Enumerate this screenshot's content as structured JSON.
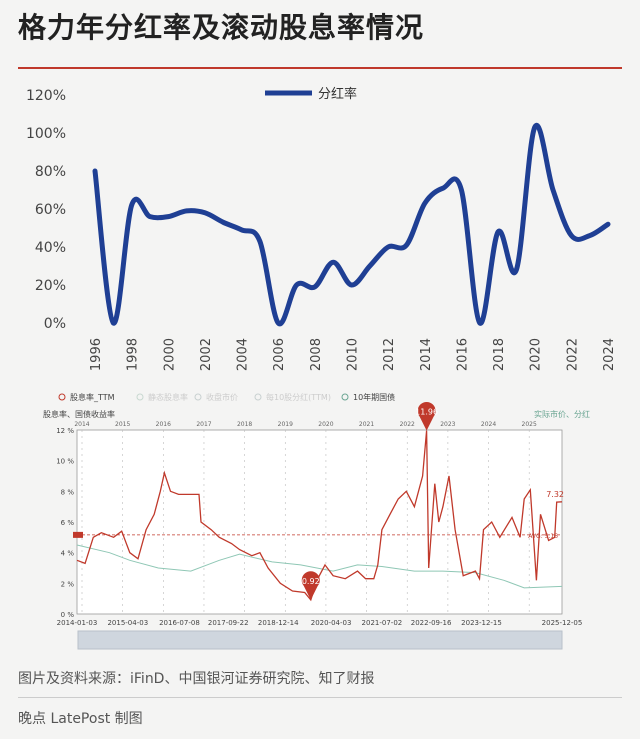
{
  "title": "格力年分红率及滚动股息率情况",
  "source": "图片及资料来源：iFinD、中国银河证券研究院、知了财报",
  "credit": "晚点 LatePost 制图",
  "colors": {
    "payout": "#1f3f94",
    "yield": "#c0392b",
    "bond": "#8fc7b5",
    "accent": "#c0392b"
  },
  "chart_data": [
    {
      "type": "line",
      "title": "",
      "legend": "top-center",
      "series": [
        {
          "name": "分红率",
          "values": [
            80,
            0,
            62,
            56,
            56,
            59,
            58,
            53,
            49,
            43,
            0,
            20,
            19,
            32,
            20,
            30,
            40,
            41,
            63,
            71,
            70,
            0,
            48,
            28,
            103,
            70,
            46,
            46,
            52
          ]
        }
      ],
      "categories": [
        "1996",
        "1997",
        "1998",
        "1999",
        "2000",
        "2001",
        "2002",
        "2003",
        "2004",
        "2005",
        "2006",
        "2007",
        "2008",
        "2009",
        "2010",
        "2011",
        "2012",
        "2013",
        "2014",
        "2015",
        "2016",
        "2017",
        "2018",
        "2019",
        "2020",
        "2021",
        "2022",
        "2023",
        "2024"
      ],
      "tick_labels_x": [
        "1996",
        "1998",
        "2000",
        "2002",
        "2004",
        "2006",
        "2008",
        "2010",
        "2012",
        "2014",
        "2016",
        "2018",
        "2020",
        "2022",
        "2024"
      ],
      "tick_labels_y": [
        "0%",
        "20%",
        "40%",
        "60%",
        "80%",
        "100%",
        "120%"
      ],
      "ylim": [
        0,
        120
      ],
      "grid": false
    },
    {
      "type": "line",
      "legend_items": [
        "股息率_TTM",
        "静态股息率",
        "收盘市价",
        "每10股分红(TTM)",
        "10年期国债"
      ],
      "ylabel": "股息率、国债收益率",
      "y2label": "实际市价、分红",
      "tick_labels_y": [
        "0 %",
        "2 %",
        "4 %",
        "6 %",
        "8 %",
        "10 %",
        "12 %"
      ],
      "ylim": [
        0,
        12
      ],
      "year_labels": [
        "2014",
        "2015",
        "2016",
        "2017",
        "2018",
        "2019",
        "2020",
        "2021",
        "2022",
        "2023",
        "2024",
        "2025"
      ],
      "tick_labels_x": [
        "2014-01-03",
        "2015-04-03",
        "2016-07-08",
        "2017-09-22",
        "2018-12-14",
        "2020-04-03",
        "2021-07-02",
        "2022-09-16",
        "2023-12-15",
        "2025-12-05"
      ],
      "max_label": "11.96",
      "min_label": "0.92",
      "last_label": "7.32",
      "avg_label": "AVG: 5.16",
      "avg": 5.16,
      "series": [
        {
          "name": "股息率_TTM",
          "points": [
            [
              2014.0,
              3.5
            ],
            [
              2014.2,
              3.3
            ],
            [
              2014.4,
              5.0
            ],
            [
              2014.6,
              5.3
            ],
            [
              2014.9,
              5.0
            ],
            [
              2015.1,
              5.4
            ],
            [
              2015.3,
              4.0
            ],
            [
              2015.5,
              3.6
            ],
            [
              2015.7,
              5.5
            ],
            [
              2015.9,
              6.5
            ],
            [
              2016.05,
              8.0
            ],
            [
              2016.15,
              9.2
            ],
            [
              2016.3,
              8.0
            ],
            [
              2016.5,
              7.8
            ],
            [
              2016.8,
              7.8
            ],
            [
              2017.0,
              7.8
            ],
            [
              2017.05,
              6.0
            ],
            [
              2017.3,
              5.5
            ],
            [
              2017.5,
              5.0
            ],
            [
              2017.8,
              4.6
            ],
            [
              2018.0,
              4.2
            ],
            [
              2018.3,
              3.8
            ],
            [
              2018.5,
              4.0
            ],
            [
              2018.7,
              3.0
            ],
            [
              2019.0,
              2.0
            ],
            [
              2019.3,
              1.5
            ],
            [
              2019.6,
              1.4
            ],
            [
              2019.75,
              0.92
            ],
            [
              2019.9,
              2.2
            ],
            [
              2020.1,
              3.2
            ],
            [
              2020.3,
              2.5
            ],
            [
              2020.6,
              2.3
            ],
            [
              2020.9,
              2.8
            ],
            [
              2021.1,
              2.3
            ],
            [
              2021.3,
              2.3
            ],
            [
              2021.4,
              3.2
            ],
            [
              2021.5,
              5.5
            ],
            [
              2021.7,
              6.5
            ],
            [
              2021.9,
              7.5
            ],
            [
              2022.1,
              8.0
            ],
            [
              2022.3,
              7.0
            ],
            [
              2022.5,
              9.0
            ],
            [
              2022.6,
              11.96
            ],
            [
              2022.65,
              3.0
            ],
            [
              2022.8,
              8.5
            ],
            [
              2022.9,
              6.0
            ],
            [
              2023.0,
              7.0
            ],
            [
              2023.15,
              9.0
            ],
            [
              2023.3,
              5.5
            ],
            [
              2023.5,
              2.5
            ],
            [
              2023.8,
              2.8
            ],
            [
              2023.9,
              2.3
            ],
            [
              2024.0,
              5.5
            ],
            [
              2024.2,
              6.0
            ],
            [
              2024.4,
              5.0
            ],
            [
              2024.7,
              6.3
            ],
            [
              2024.9,
              5.0
            ],
            [
              2025.0,
              7.5
            ],
            [
              2025.15,
              8.1
            ],
            [
              2025.3,
              2.2
            ],
            [
              2025.4,
              6.5
            ],
            [
              2025.6,
              4.8
            ],
            [
              2025.75,
              5.0
            ],
            [
              2025.8,
              7.3
            ],
            [
              2025.93,
              7.32
            ]
          ]
        },
        {
          "name": "10年期国债",
          "points": [
            [
              2014.0,
              4.5
            ],
            [
              2014.8,
              4.0
            ],
            [
              2015.3,
              3.5
            ],
            [
              2016.0,
              3.0
            ],
            [
              2016.8,
              2.8
            ],
            [
              2017.5,
              3.5
            ],
            [
              2018.0,
              3.9
            ],
            [
              2018.8,
              3.4
            ],
            [
              2019.5,
              3.2
            ],
            [
              2020.3,
              2.8
            ],
            [
              2020.9,
              3.2
            ],
            [
              2021.5,
              3.1
            ],
            [
              2022.3,
              2.8
            ],
            [
              2023.0,
              2.8
            ],
            [
              2023.8,
              2.7
            ],
            [
              2024.5,
              2.2
            ],
            [
              2025.0,
              1.7
            ],
            [
              2025.93,
              1.8
            ]
          ]
        }
      ]
    }
  ]
}
